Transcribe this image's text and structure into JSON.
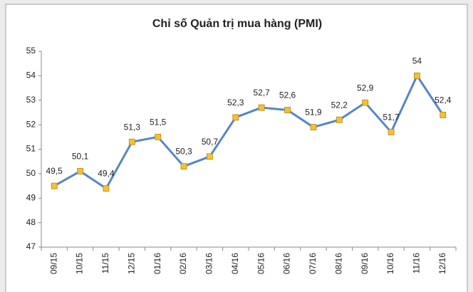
{
  "chart_data": {
    "type": "line",
    "title": "Chỉ số Quản trị mua hàng (PMI)",
    "categories": [
      "09/15",
      "10/15",
      "11/15",
      "12/15",
      "01/16",
      "02/16",
      "03/16",
      "04/16",
      "05/16",
      "06/16",
      "07/16",
      "08/16",
      "09/16",
      "10/16",
      "11/16",
      "12/16"
    ],
    "series": [
      {
        "name": "PMI",
        "color": "#5585cc",
        "marker_color": "#f5c034",
        "values": [
          49.5,
          50.1,
          49.4,
          51.3,
          51.5,
          50.3,
          50.7,
          52.3,
          52.7,
          52.6,
          51.9,
          52.2,
          52.9,
          51.7,
          54,
          52.4
        ],
        "value_labels": [
          "49,5",
          "50,1",
          "49,4",
          "51,3",
          "51,5",
          "50,3",
          "50,7",
          "52,3",
          "52,7",
          "52,6",
          "51,9",
          "52,2",
          "52,9",
          "51,7",
          "54",
          "52,4"
        ]
      }
    ],
    "ylim": [
      47,
      55
    ],
    "yticks": [
      47,
      48,
      49,
      50,
      51,
      52,
      53,
      54,
      55
    ],
    "grid": false,
    "legend": false
  }
}
